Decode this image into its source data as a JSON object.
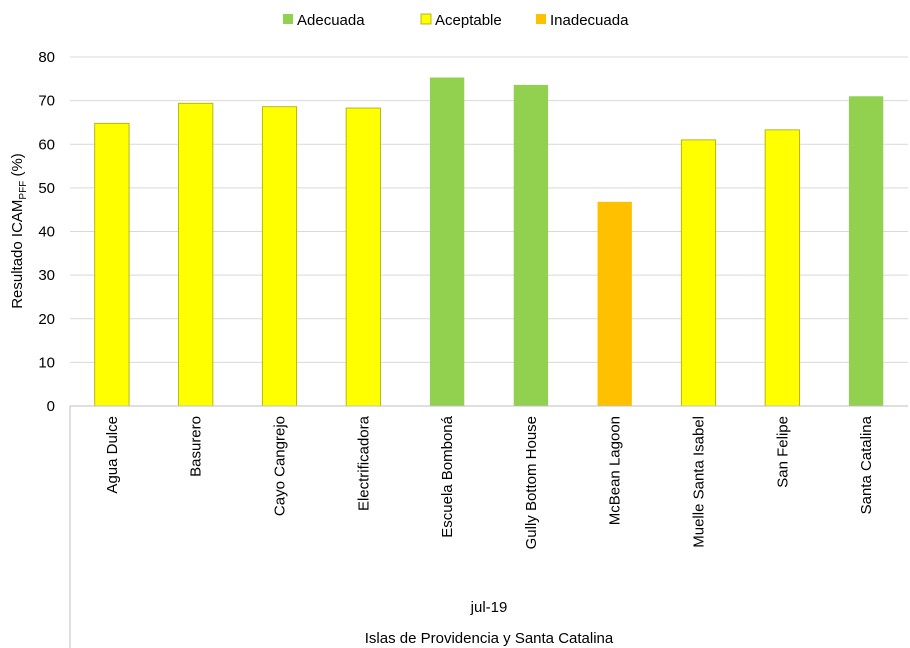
{
  "chart_data": {
    "type": "bar",
    "ylabel": "Resultado ICAM",
    "ylabel_subscript": "PFF",
    "ylabel_suffix": "(%)",
    "ylim": [
      0,
      80
    ],
    "yticks": [
      0,
      10,
      20,
      30,
      40,
      50,
      60,
      70,
      80
    ],
    "grid": true,
    "legend_position": "top",
    "legend": [
      {
        "name": "Adecuada",
        "color": "#92D050"
      },
      {
        "name": "Aceptable",
        "color": "#FFFF00"
      },
      {
        "name": "Inadecuada",
        "color": "#FFC000"
      }
    ],
    "categories": [
      "Agua Dulce",
      "Basurero",
      "Cayo Cangrejo",
      "Electrificadora",
      "Escuela Bomboná",
      "Gully Bottom House",
      "McBean Lagoon",
      "Muelle Santa Isabel",
      "San Felipe",
      "Santa Catalina"
    ],
    "values": [
      64.8,
      69.4,
      68.6,
      68.3,
      75.3,
      73.6,
      46.8,
      61.0,
      63.3,
      71.0
    ],
    "classes": [
      "Aceptable",
      "Aceptable",
      "Aceptable",
      "Aceptable",
      "Adecuada",
      "Adecuada",
      "Inadecuada",
      "Aceptable",
      "Aceptable",
      "Adecuada"
    ],
    "group_labels": [
      "jul-19",
      "Islas de Providencia y Santa Catalina"
    ]
  }
}
